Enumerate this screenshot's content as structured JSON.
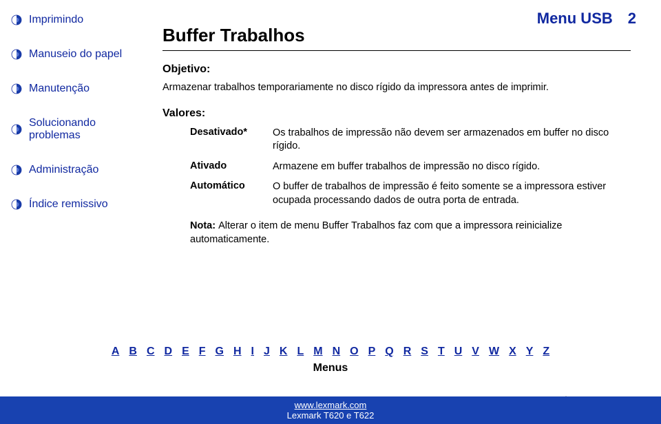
{
  "header": {
    "title": "Menu USB",
    "page_number": "2"
  },
  "sidebar": {
    "items": [
      {
        "label": "Imprimindo"
      },
      {
        "label": "Manuseio do papel"
      },
      {
        "label": "Manutenção"
      },
      {
        "label": "Solucionando problemas"
      },
      {
        "label": "Administração"
      },
      {
        "label": "Índice remissivo"
      }
    ]
  },
  "main": {
    "section_title": "Buffer Trabalhos",
    "objetivo_label": "Objetivo:",
    "objetivo_text": "Armazenar trabalhos temporariamente no disco rígido da impressora antes de imprimir.",
    "valores_label": "Valores:",
    "values": [
      {
        "key": "Desativado*",
        "desc": "Os trabalhos de impressão não devem ser armazenados em buffer no disco rígido."
      },
      {
        "key": "Ativado",
        "desc": "Armazene em buffer trabalhos de impressão no disco rígido."
      },
      {
        "key": "Automático",
        "desc": "O buffer de trabalhos de impressão é feito somente se a impressora estiver ocupada processando dados de outra porta de entrada."
      }
    ],
    "note_label": "Nota: ",
    "note_text": "Alterar o item de menu Buffer Trabalhos faz com que a impressora reinicialize automaticamente."
  },
  "alpha": {
    "letters": [
      "A",
      "B",
      "C",
      "D",
      "E",
      "F",
      "G",
      "H",
      "I",
      "J",
      "K",
      "L",
      "M",
      "N",
      "O",
      "P",
      "Q",
      "R",
      "S",
      "T",
      "U",
      "V",
      "W",
      "X",
      "Y",
      "Z"
    ],
    "menus_label": "Menus"
  },
  "footer": {
    "url": "www.lexmark.com",
    "product": "Lexmark T620 e T622"
  },
  "colors": {
    "link": "#1028a0",
    "footer_bg": "#1842b0",
    "text": "#000000",
    "bg": "#ffffff"
  }
}
